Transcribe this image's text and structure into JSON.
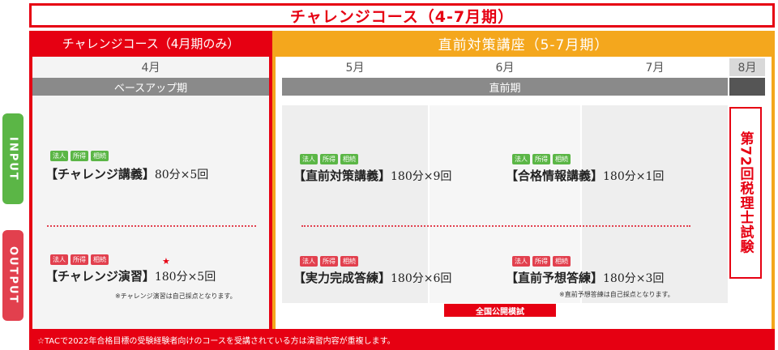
{
  "title": "チャレンジコース（4-7月期）",
  "left": {
    "header": "チャレンジコース（4月期のみ）",
    "month": "4月",
    "phase": "ベースアップ期"
  },
  "right": {
    "header": "直前対策講座（5-7月期）",
    "months": [
      "5月",
      "6月",
      "7月",
      "8月"
    ],
    "phase": "直前期"
  },
  "tabs": {
    "input": "INPUT",
    "output": "OUTPUT"
  },
  "tags": {
    "houjin": "法人",
    "shotoku": "所得",
    "souzoku": "相続"
  },
  "courses": {
    "challenge_lecture": {
      "name": "【チャレンジ講義】",
      "detail": "80分×5回"
    },
    "challenge_exercise": {
      "name": "【チャレンジ演習】",
      "detail": "180分×5回",
      "star": "★",
      "note": "※チャレンジ演習は自己採点となります。"
    },
    "chokuzen_lecture": {
      "name": "【直前対策講義】",
      "detail": "180分×9回"
    },
    "goukaku_lecture": {
      "name": "【合格情報講義】",
      "detail": "180分×1回"
    },
    "jitsuryoku": {
      "name": "【実力完成答練】",
      "detail": "180分×6回"
    },
    "yosou": {
      "name": "【直前予想答練】",
      "detail": "180分×3回",
      "note": "※直前予想答練は自己採点となります。"
    }
  },
  "mock_exam": "全国公開模試",
  "exam": "第72回税理士試験",
  "footer": "☆TACで2022年合格目標の受験経験者向けのコースを受講されている方は演習内容が重複します。",
  "colors": {
    "red": "#e60012",
    "orange": "#f4a71d",
    "green": "#5bb646",
    "pink": "#e2404e",
    "gray": "#8a8a8a"
  }
}
